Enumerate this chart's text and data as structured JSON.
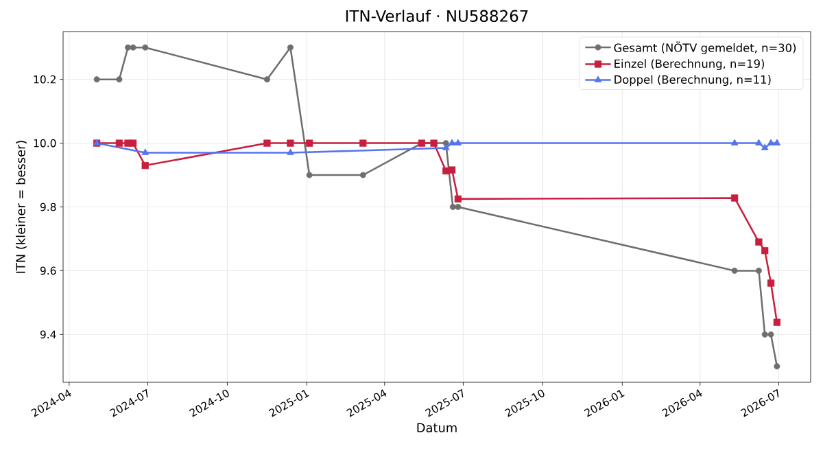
{
  "chart_data": {
    "type": "line",
    "title": "ITN-Verlauf · NU588267",
    "xlabel": "Datum",
    "ylabel": "ITN (kleiner = besser)",
    "xlim": [
      "2024-03-25",
      "2026-08-07"
    ],
    "xticks": [
      "2024-04",
      "2024-07",
      "2024-10",
      "2025-01",
      "2025-04",
      "2025-07",
      "2025-10",
      "2026-01",
      "2026-04",
      "2026-07"
    ],
    "ylim": [
      9.25,
      10.35
    ],
    "yticks": [
      {
        "value": 9.4,
        "label": "9.4"
      },
      {
        "value": 9.6,
        "label": "9.6"
      },
      {
        "value": 9.8,
        "label": "9.8"
      },
      {
        "value": 10.0,
        "label": "10.0"
      },
      {
        "value": 10.2,
        "label": "10.2"
      }
    ],
    "grid": true,
    "legend": "top right",
    "line_style": "solid",
    "series": [
      {
        "name": "Gesamt (NÖTV gemeldet, n=30)",
        "color": "#6e6e6e",
        "marker": "circle",
        "x": [
          "2024-05-03",
          "2024-05-29",
          "2024-06-08",
          "2024-06-14",
          "2024-06-28",
          "2024-11-16",
          "2024-12-13",
          "2025-01-04",
          "2025-03-07",
          "2025-05-14",
          "2025-06-11",
          "2025-06-19",
          "2025-06-25",
          "2026-05-11",
          "2026-06-08",
          "2026-06-15",
          "2026-06-22",
          "2026-06-29"
        ],
        "values": [
          10.2,
          10.2,
          10.3,
          10.3,
          10.3,
          10.2,
          10.3,
          9.9,
          9.9,
          10.0,
          10.0,
          9.8,
          9.8,
          9.6,
          9.6,
          9.4,
          9.4,
          9.3
        ]
      },
      {
        "name": "Einzel (Berechnung, n=19)",
        "color": "#c81f3e",
        "marker": "square",
        "x": [
          "2024-05-03",
          "2024-05-29",
          "2024-06-08",
          "2024-06-14",
          "2024-06-28",
          "2024-11-16",
          "2024-12-13",
          "2025-01-04",
          "2025-03-07",
          "2025-05-14",
          "2025-05-28",
          "2025-06-11",
          "2025-06-18",
          "2025-06-25",
          "2026-05-11",
          "2026-06-08",
          "2026-06-15",
          "2026-06-22",
          "2026-06-29"
        ],
        "values": [
          10.0,
          10.0,
          10.0,
          10.0,
          9.93,
          10.0,
          10.0,
          10.0,
          10.0,
          10.0,
          10.0,
          9.913,
          9.916,
          9.825,
          9.828,
          9.69,
          9.663,
          9.561,
          9.438
        ]
      },
      {
        "name": "Doppel (Berechnung, n=11)",
        "color": "#5574ee",
        "marker": "triangle",
        "x": [
          "2024-05-03",
          "2024-06-28",
          "2024-12-13",
          "2025-06-11",
          "2025-06-18",
          "2025-06-25",
          "2026-05-11",
          "2026-06-08",
          "2026-06-15",
          "2026-06-22",
          "2026-06-29"
        ],
        "values": [
          10.0,
          9.97,
          9.97,
          9.985,
          10.0,
          10.0,
          10.0,
          10.0,
          9.985,
          10.0,
          10.0
        ]
      }
    ]
  }
}
